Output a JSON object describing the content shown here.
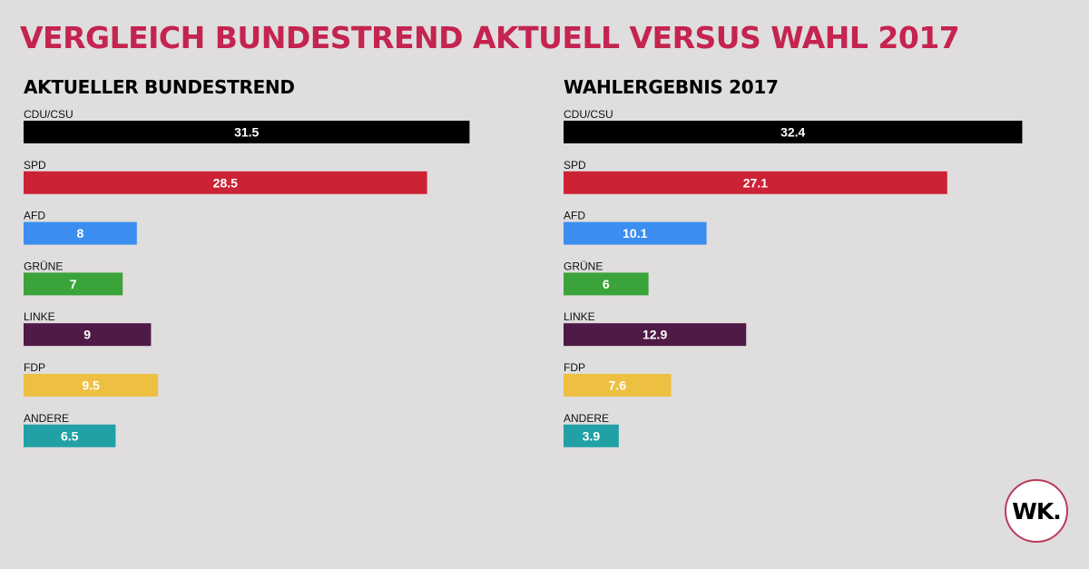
{
  "title": "VERGLEICH BUNDESTREND AKTUELL VERSUS WAHL 2017",
  "logo_text": "WK.",
  "chart_data": [
    {
      "type": "bar",
      "orientation": "horizontal",
      "title": "AKTUELLER BUNDESTREND",
      "categories": [
        "CDU/CSU",
        "SPD",
        "AFD",
        "GRÜNE",
        "LINKE",
        "FDP",
        "ANDERE"
      ],
      "values": [
        31.5,
        28.5,
        8,
        7,
        9,
        9.5,
        6.5
      ],
      "value_labels": [
        "31.5",
        "28.5",
        "8",
        "7",
        "9",
        "9.5",
        "6.5"
      ],
      "colors": [
        "#000000",
        "#cc2236",
        "#3b8ef0",
        "#3aa33a",
        "#4f1a45",
        "#eec041",
        "#21a1a6"
      ],
      "xlim": [
        0,
        36
      ]
    },
    {
      "type": "bar",
      "orientation": "horizontal",
      "title": "WAHLERGEBNIS 2017",
      "categories": [
        "CDU/CSU",
        "SPD",
        "AFD",
        "GRÜNE",
        "LINKE",
        "FDP",
        "ANDERE"
      ],
      "values": [
        32.4,
        27.1,
        10.1,
        6,
        12.9,
        7.6,
        3.9
      ],
      "value_labels": [
        "32.4",
        "27.1",
        "10.1",
        "6",
        "12.9",
        "7.6",
        "3.9"
      ],
      "colors": [
        "#000000",
        "#cc2236",
        "#3b8ef0",
        "#3aa33a",
        "#4f1a45",
        "#eec041",
        "#21a1a6"
      ],
      "xlim": [
        0,
        36
      ]
    }
  ]
}
